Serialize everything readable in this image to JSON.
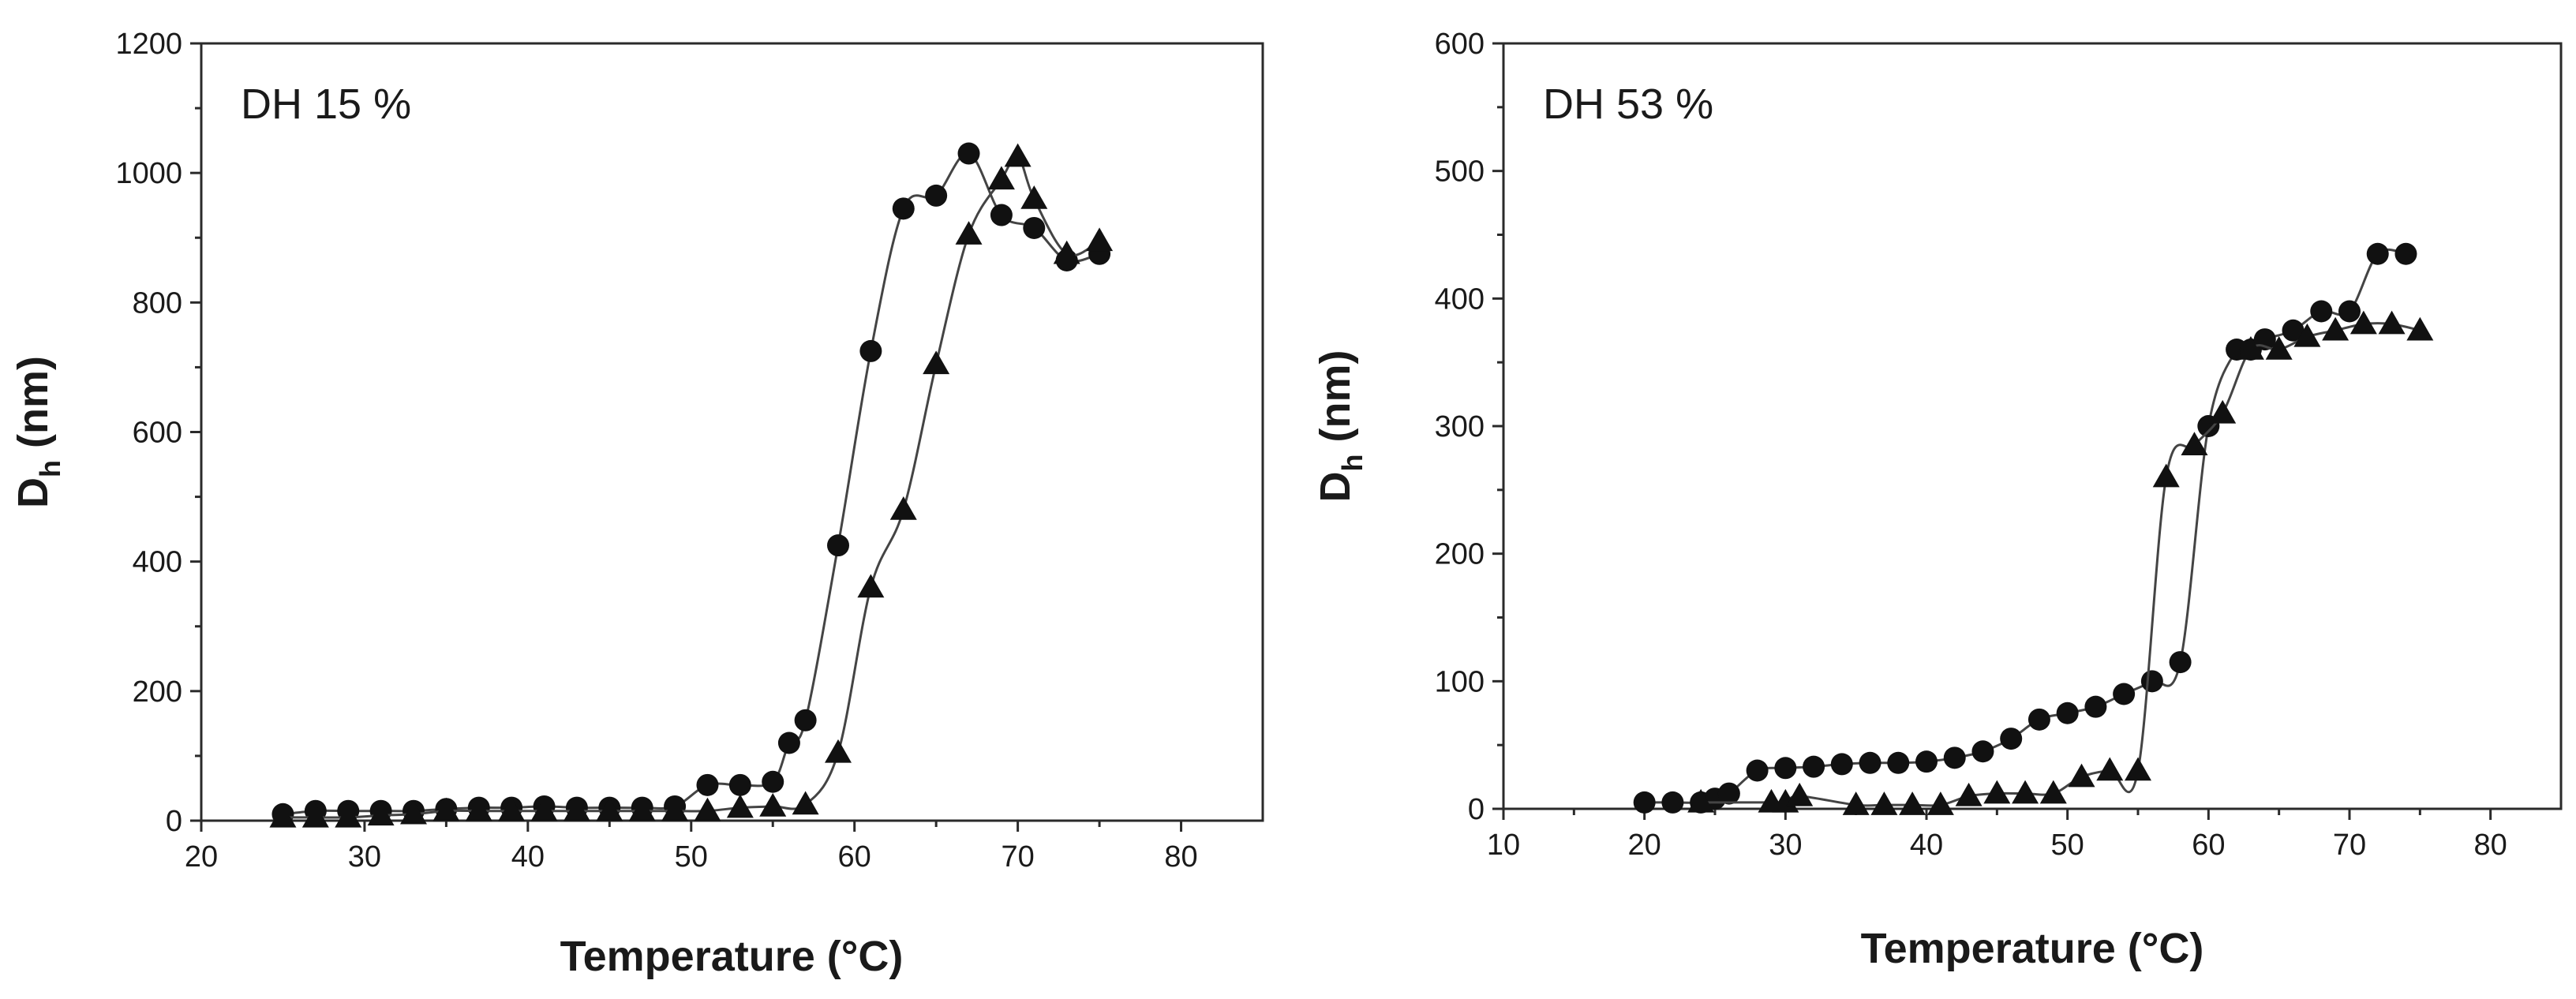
{
  "chart_data": [
    {
      "type": "scatter",
      "annotation": "DH 15 %",
      "xlabel": "Temperature (°C)",
      "ylabel": "Dh (nm)",
      "ylabel_main": "D",
      "ylabel_sub": "h",
      "ylabel_unit": "(nm)",
      "xlim": [
        20,
        85
      ],
      "ylim": [
        0,
        1200
      ],
      "xticks": [
        20,
        30,
        40,
        50,
        60,
        70,
        80
      ],
      "yticks": [
        0,
        200,
        400,
        600,
        800,
        1000,
        1200
      ],
      "series": [
        {
          "name": "circles",
          "marker": "circle",
          "x": [
            25,
            27,
            29,
            31,
            33,
            35,
            37,
            39,
            41,
            43,
            45,
            47,
            49,
            51,
            53,
            55,
            56,
            57,
            59,
            61,
            63,
            65,
            67,
            69,
            71,
            73,
            75
          ],
          "y": [
            10,
            15,
            15,
            15,
            15,
            18,
            20,
            20,
            22,
            20,
            20,
            20,
            22,
            55,
            55,
            60,
            120,
            155,
            425,
            725,
            945,
            965,
            1030,
            935,
            915,
            865,
            875
          ]
        },
        {
          "name": "triangles",
          "marker": "triangle",
          "x": [
            25,
            27,
            29,
            31,
            33,
            35,
            37,
            39,
            41,
            43,
            45,
            47,
            49,
            51,
            53,
            55,
            57,
            59,
            61,
            63,
            65,
            67,
            69,
            70,
            71,
            73,
            75
          ],
          "y": [
            5,
            5,
            5,
            8,
            10,
            15,
            15,
            15,
            15,
            15,
            15,
            15,
            15,
            15,
            20,
            22,
            25,
            105,
            360,
            480,
            705,
            905,
            990,
            1025,
            960,
            875,
            895
          ]
        }
      ]
    },
    {
      "type": "scatter",
      "annotation": "DH 53 %",
      "xlabel": "Temperature (°C)",
      "ylabel": "Dh (nm)",
      "ylabel_main": "D",
      "ylabel_sub": "h",
      "ylabel_unit": "(nm)",
      "xlim": [
        10,
        85
      ],
      "ylim": [
        0,
        600
      ],
      "xticks": [
        10,
        20,
        30,
        40,
        50,
        60,
        70,
        80
      ],
      "yticks": [
        0,
        100,
        200,
        300,
        400,
        500,
        600
      ],
      "series": [
        {
          "name": "circles",
          "marker": "circle",
          "x": [
            20,
            22,
            24,
            25,
            26,
            28,
            30,
            32,
            34,
            36,
            38,
            40,
            42,
            44,
            46,
            48,
            50,
            52,
            54,
            56,
            58,
            60,
            62,
            63,
            64,
            66,
            68,
            70,
            72,
            74
          ],
          "y": [
            5,
            5,
            5,
            8,
            12,
            30,
            32,
            33,
            35,
            36,
            36,
            37,
            40,
            45,
            55,
            70,
            75,
            80,
            90,
            100,
            115,
            300,
            360,
            360,
            368,
            375,
            390,
            390,
            435,
            435
          ]
        },
        {
          "name": "triangles",
          "marker": "triangle",
          "x": [
            24,
            29,
            30,
            31,
            35,
            37,
            39,
            41,
            43,
            45,
            47,
            49,
            51,
            53,
            55,
            57,
            59,
            61,
            63,
            65,
            67,
            69,
            71,
            73,
            75
          ],
          "y": [
            5,
            5,
            5,
            10,
            3,
            3,
            3,
            3,
            10,
            12,
            12,
            12,
            25,
            30,
            30,
            260,
            285,
            310,
            360,
            360,
            370,
            375,
            380,
            380,
            375
          ]
        }
      ]
    }
  ]
}
